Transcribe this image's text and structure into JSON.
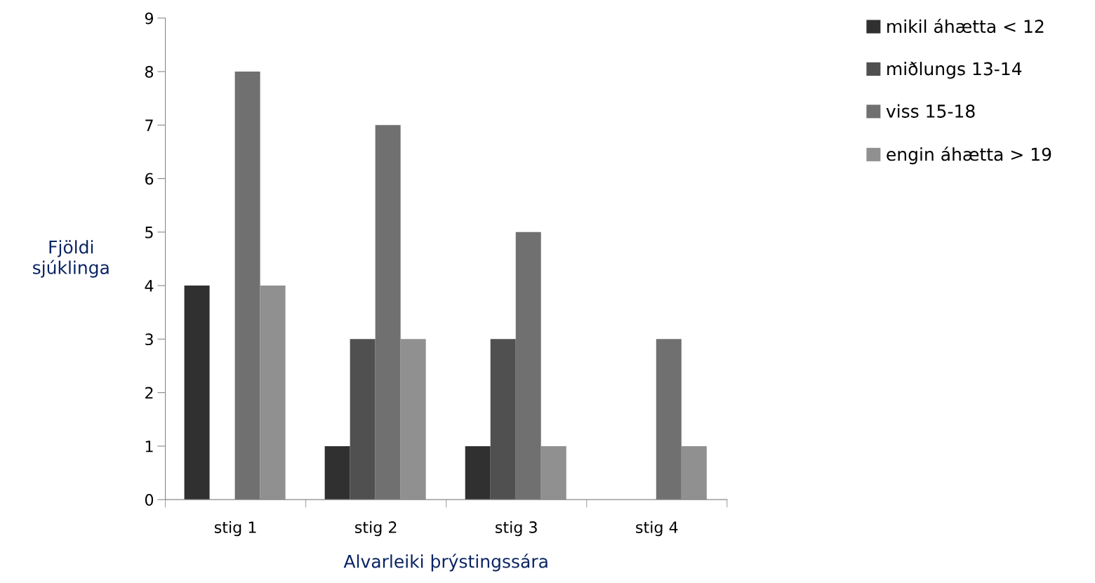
{
  "chart_data": {
    "type": "bar",
    "xlabel": "Alvarleiki þrýstingssára",
    "ylabel": "Fjöldi\nsjúklinga",
    "categories": [
      "stig 1",
      "stig 2",
      "stig 3",
      "stig 4"
    ],
    "series": [
      {
        "name": "mikil áhætta < 12",
        "color": "#303030",
        "values": [
          4,
          1,
          1,
          0
        ]
      },
      {
        "name": "miðlungs 13-14",
        "color": "#505050",
        "values": [
          0,
          3,
          3,
          0
        ]
      },
      {
        "name": "viss 15-18",
        "color": "#707070",
        "values": [
          8,
          7,
          5,
          3
        ]
      },
      {
        "name": "engin áhætta > 19",
        "color": "#909090",
        "values": [
          4,
          3,
          1,
          1
        ]
      }
    ],
    "ylim": [
      0,
      9
    ],
    "yticks": [
      0,
      1,
      2,
      3,
      4,
      5,
      6,
      7,
      8,
      9
    ],
    "grid": false,
    "legend": "top right"
  }
}
